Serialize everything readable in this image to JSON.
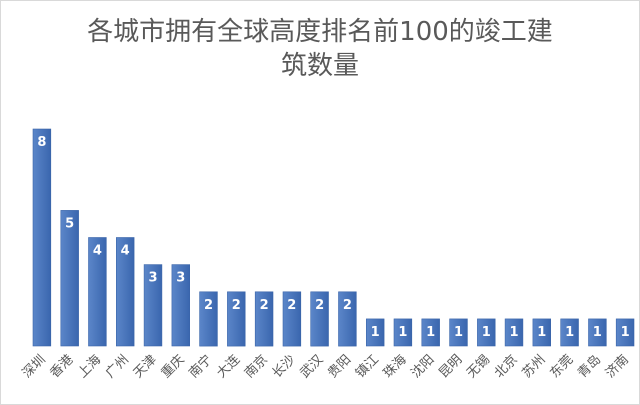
{
  "chart_data": {
    "type": "bar",
    "title": "各城市拥有全球高度排名前100的竣工建\n筑数量",
    "xlabel": "",
    "ylabel": "",
    "categories": [
      "深圳",
      "香港",
      "上海",
      "广州",
      "天津",
      "重庆",
      "南宁",
      "大连",
      "南京",
      "长沙",
      "武汉",
      "贵阳",
      "镇江",
      "珠海",
      "沈阳",
      "昆明",
      "无锡",
      "北京",
      "苏州",
      "东莞",
      "青岛",
      "济南"
    ],
    "values": [
      8,
      5,
      4,
      4,
      3,
      3,
      2,
      2,
      2,
      2,
      2,
      2,
      1,
      1,
      1,
      1,
      1,
      1,
      1,
      1,
      1,
      1
    ],
    "ylim": [
      0,
      8
    ],
    "grid": false,
    "legend": "none",
    "data_labels": true,
    "bar_color": "#4472C4",
    "bar_gradient": [
      "#5b86c9",
      "#3a66ae"
    ]
  }
}
